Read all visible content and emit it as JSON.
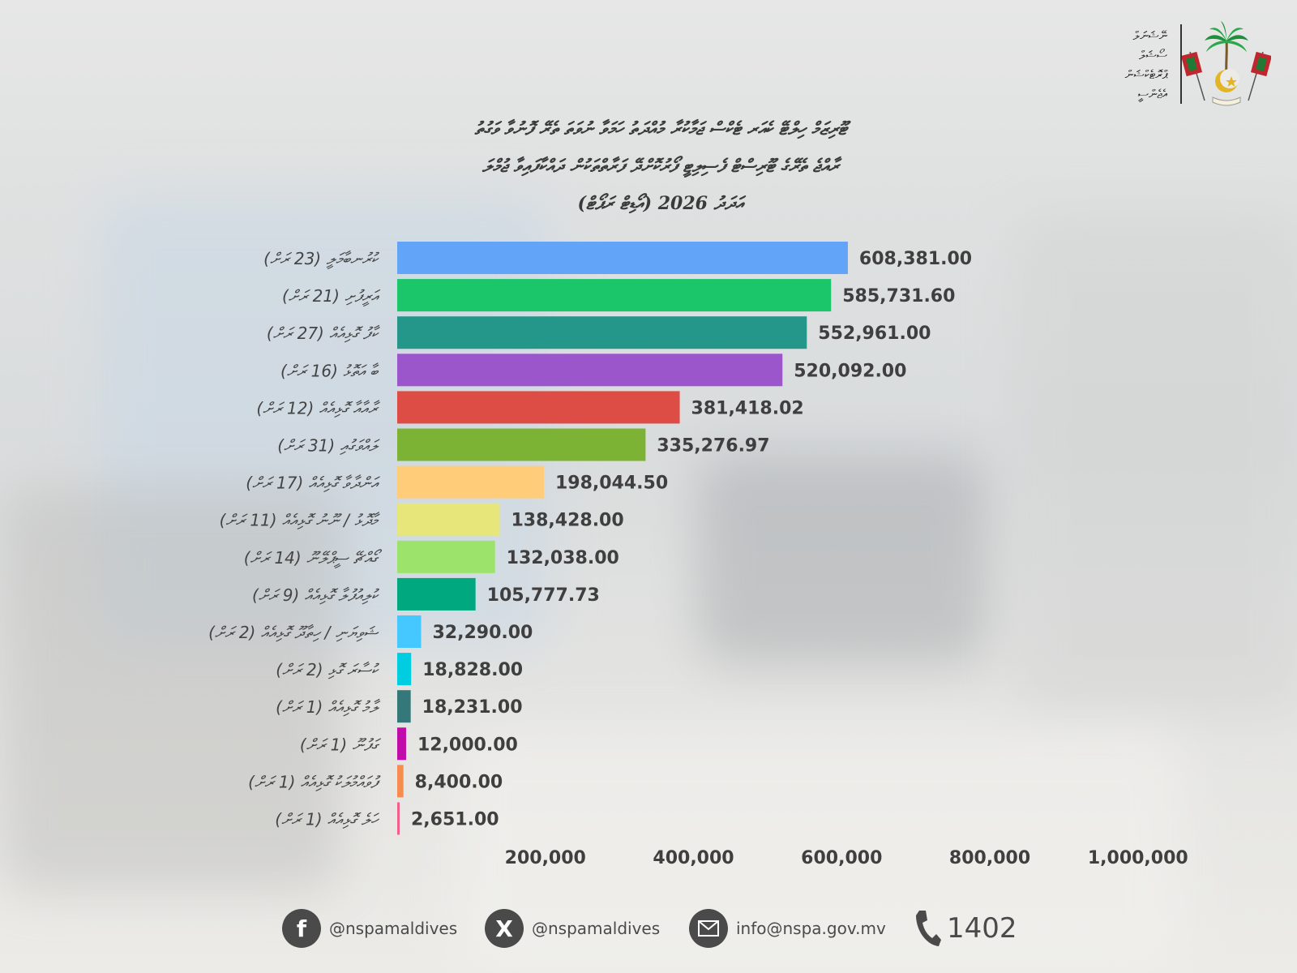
{
  "header": {
    "org_name_lines": [
      "ނޭޝަނަލް",
      "ސޯޝަލް",
      "ޕްރޮޓެކްޝަން",
      "އެޖެންސީ"
    ]
  },
  "title_lines": [
    "ޓޫރިޒަމް ހިލްޓޭ ކެއަރ ޓެކްސް ޖަމާކުރާ މުއްދަތު ހަމަވާ ނުވަތަ ތެރޭ ފޮނުވާ ވަގުތު",
    "ރާއްޖެ ތެރޭގެ ޓޫރިސްޓް ފެސިލިޓީ ފޯރުކޮށްދޭ ފަރާތްތަކުން ދައްކާފައިވާ ޖުމްލަ",
    "އަދަދު 2026 (އޯޑިޓް ރަޕޯޓް)"
  ],
  "chart_data": {
    "type": "bar",
    "orientation": "horizontal",
    "categories": [
      "ކުރުނބާމަލީ (23 ރަށް)",
      "އަރީފުށި (21 ރަށް)",
      "ކާފު ގޮޅިއެއް (27 ރަށް)",
      "ބާ އަތޮޅު (16 ރަށް)",
      "ރާއާއާ ގޮޅިއެއް (12 ރަށް)",
      "ލައްވަގުއި (31 ރަށް)",
      "އަންދާވާ ގޮޅިއެއް (17 ރަށް)",
      "މާދޮޅު / ނޫނު ގޮޅިއެއް (11 ރަށް)",
      "ގޯއްޗޭ ސީޕްލޭނޫ (14 ރަށް)",
      "ކުލިއުފުލާ ގޮޅިއެއް (9 ރަށް)",
      "ޝަވިޔަނި / ހިތާދޫ ގޮޅިއެއް (2 ރަށް)",
      "ކުސާރަ ގޮޅި (2 ރަށް)",
      "ލާމު ގޮޅިއެއް (1 ރަށް)",
      "ގަފުނޫ (1 ރަށް)",
      "ފުވައްމުލަކު ގޮޅިއެއް (1 ރަށް)",
      "ހަލެ ގޮޅިއެއް (1 ރަށް)"
    ],
    "values": [
      608381.0,
      585731.6,
      552961.0,
      520092.0,
      381418.02,
      335276.97,
      198044.5,
      138428.0,
      132038.0,
      105777.73,
      32290.0,
      18828.0,
      18231.0,
      12000.0,
      8400.0,
      2651.0
    ],
    "value_labels": [
      "608,381.00",
      "585,731.60",
      "552,961.00",
      "520,092.00",
      "381,418.02",
      "335,276.97",
      "198,044.50",
      "138,428.00",
      "132,038.00",
      "105,777.73",
      "32,290.00",
      "18,828.00",
      "18,231.00",
      "12,000.00",
      "8,400.00",
      "2,651.00"
    ],
    "colors": [
      "#62a5f8",
      "#1bc56a",
      "#25968a",
      "#9c56cc",
      "#de4d45",
      "#7db334",
      "#ffcc7a",
      "#e6e67a",
      "#9be36a",
      "#00a880",
      "#45c8ff",
      "#00cde0",
      "#35787a",
      "#c00ca8",
      "#f68c4e",
      "#f0608a"
    ],
    "x_ticks": [
      "200,000",
      "400,000",
      "600,000",
      "800,000",
      "1,000,000"
    ],
    "x_tick_values": [
      200000,
      400000,
      600000,
      800000,
      1000000
    ],
    "xlim": [
      0,
      1000000
    ],
    "grid": false,
    "legend": "none"
  },
  "footer": {
    "facebook_handle": "@nspamaldives",
    "x_handle": "@nspamaldives",
    "email": "info@nspa.gov.mv",
    "phone": "1402",
    "icons": [
      "facebook-icon",
      "x-icon",
      "email-icon",
      "phone-icon"
    ]
  }
}
